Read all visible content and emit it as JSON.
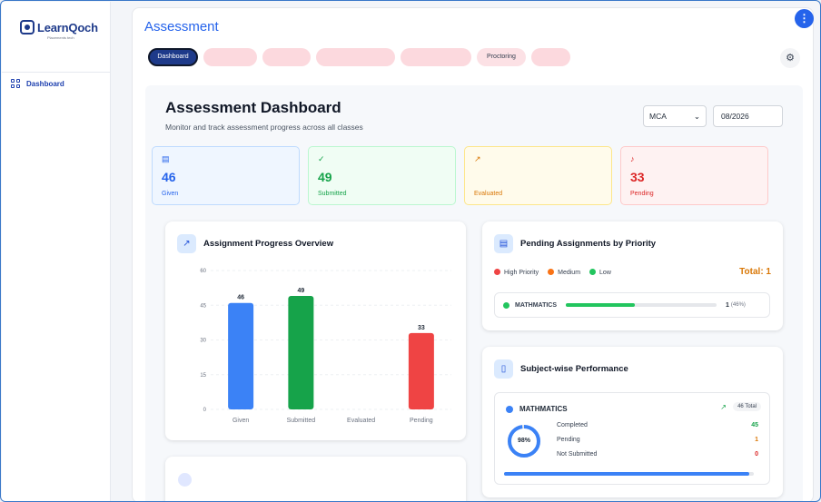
{
  "app": {
    "logo_text": "LearnQoch",
    "logo_sub": "Placements tech"
  },
  "sidebar": {
    "items": [
      {
        "label": "Dashboard"
      }
    ]
  },
  "header": {
    "title": "Assessment",
    "menu_icon": "⋮"
  },
  "tabs": [
    {
      "label": "Dashboard",
      "active": true
    },
    {
      "label": ""
    },
    {
      "label": ""
    },
    {
      "label": ""
    },
    {
      "label": ""
    },
    {
      "label": "Proctoring"
    },
    {
      "label": ""
    }
  ],
  "dashboard": {
    "title": "Assessment Dashboard",
    "subtitle": "Monitor and track assessment progress across all classes",
    "course": "MCA",
    "date": "08/2026"
  },
  "stats": [
    {
      "value": "46",
      "label": "Given",
      "color": "#2563eb"
    },
    {
      "value": "49",
      "label": "Submitted",
      "color": "#16a34a"
    },
    {
      "value": "",
      "label": "Evaluated",
      "color": "#d97706"
    },
    {
      "value": "33",
      "label": "Pending",
      "color": "#dc2626"
    }
  ],
  "progress_card": {
    "title": "Assignment Progress Overview"
  },
  "chart_data": {
    "type": "bar",
    "categories": [
      "Given",
      "Submitted",
      "Evaluated",
      "Pending"
    ],
    "values": [
      46,
      49,
      0,
      33
    ],
    "data_labels": [
      "46",
      "49",
      "",
      "33"
    ],
    "colors": [
      "#3b82f6",
      "#16a34a",
      "#f59e0b",
      "#ef4444"
    ],
    "yticks": [
      0,
      15,
      30,
      45,
      60
    ],
    "ylim": [
      0,
      60
    ],
    "grid": true
  },
  "priority_card": {
    "title": "Pending Assignments by Priority",
    "legend": [
      {
        "label": "High Priority",
        "color": "#ef4444"
      },
      {
        "label": "Medium",
        "color": "#f97316"
      },
      {
        "label": "Low",
        "color": "#22c55e"
      }
    ],
    "total": "Total: 1",
    "rows": [
      {
        "subject": "MATHMATICS",
        "count": "1",
        "pct": "(46%)",
        "fraction": 0.46
      }
    ]
  },
  "performance_card": {
    "title": "Subject-wise Performance",
    "subject": "MATHMATICS",
    "total": "46 Total",
    "percent": "98%",
    "percent_value": 0.98,
    "completed_label": "Completed",
    "completed": "45",
    "pending_label": "Pending",
    "pending": "1",
    "not_submitted_label": "Not Submitted",
    "not_submitted": "0"
  }
}
